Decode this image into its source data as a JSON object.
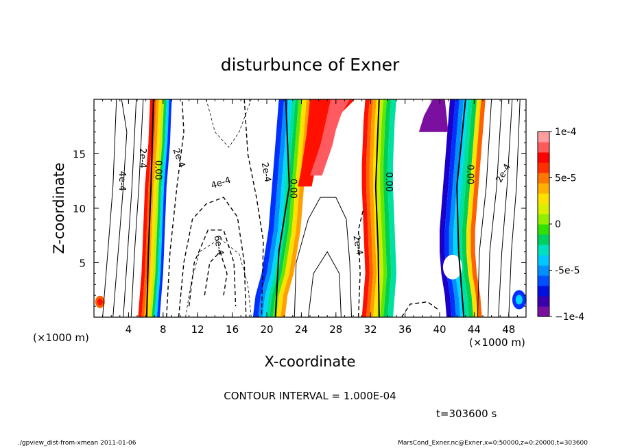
{
  "chart_data": {
    "type": "heatmap",
    "title": "disturbunce of Exner",
    "xlabel": "X-coordinate",
    "ylabel": "Z-coordinate",
    "x_unit": "(×1000 m)",
    "y_unit": "(×1000 m)",
    "xlim": [
      0,
      50
    ],
    "ylim": [
      0,
      20
    ],
    "x_ticks": [
      4,
      8,
      12,
      16,
      20,
      24,
      28,
      32,
      36,
      40,
      44,
      48
    ],
    "y_ticks": [
      5,
      10,
      15
    ],
    "colorbar": {
      "range": [
        -0.0001,
        0.0001
      ],
      "ticks": [
        {
          "value": 0.0001,
          "label": "1e-4"
        },
        {
          "value": 5e-05,
          "label": "5e-5"
        },
        {
          "value": 0,
          "label": "0"
        },
        {
          "value": -5e-05,
          "label": "-5e-5"
        },
        {
          "value": -0.0001,
          "label": "−1e-4"
        }
      ],
      "colors": [
        "#7b0fa0",
        "#3a00b0",
        "#0010e0",
        "#0050ff",
        "#0090ff",
        "#00c8ff",
        "#00e0c0",
        "#00d060",
        "#30e000",
        "#90f000",
        "#d8f000",
        "#ffe000",
        "#ffb000",
        "#ff7800",
        "#ff3000",
        "#ff0000",
        "#ff5a5a",
        "#ff9ca0"
      ]
    },
    "contour_labels": [
      {
        "text": "4e-4",
        "x": 3.2,
        "y": 12.5,
        "rot": 90
      },
      {
        "text": "2e-4",
        "x": 5.6,
        "y": 14.6,
        "rot": 90
      },
      {
        "text": "0.00",
        "x": 7.4,
        "y": 13.5,
        "rot": 90
      },
      {
        "text": "2e-4",
        "x": 9.8,
        "y": 14.6,
        "rot": 70
      },
      {
        "text": "4e-4",
        "x": 14.7,
        "y": 12.3,
        "rot": -18
      },
      {
        "text": "6e-4",
        "x": 14.4,
        "y": 6.6,
        "rot": 80
      },
      {
        "text": "2e-4",
        "x": 19.9,
        "y": 13.3,
        "rot": 80
      },
      {
        "text": "0.00",
        "x": 23.0,
        "y": 11.8,
        "rot": 90
      },
      {
        "text": "2e-4",
        "x": 30.5,
        "y": 6.6,
        "rot": 80
      },
      {
        "text": "0.00",
        "x": 34.1,
        "y": 12.4,
        "rot": 90
      },
      {
        "text": "0.00",
        "x": 43.5,
        "y": 13.1,
        "rot": 90
      },
      {
        "text": "2e-4",
        "x": 47.4,
        "y": 13.2,
        "rot": -60
      }
    ],
    "contour_interval_label": "CONTOUR INTERVAL = 1.000E-04",
    "time_label": "t=303600  s"
  },
  "footer": {
    "left": "./gpview_dist-from-xmean  2011-01-06",
    "right": "MarsCond_Exner.nc@Exner,x=0:50000,z=0:20000,t=303600"
  }
}
